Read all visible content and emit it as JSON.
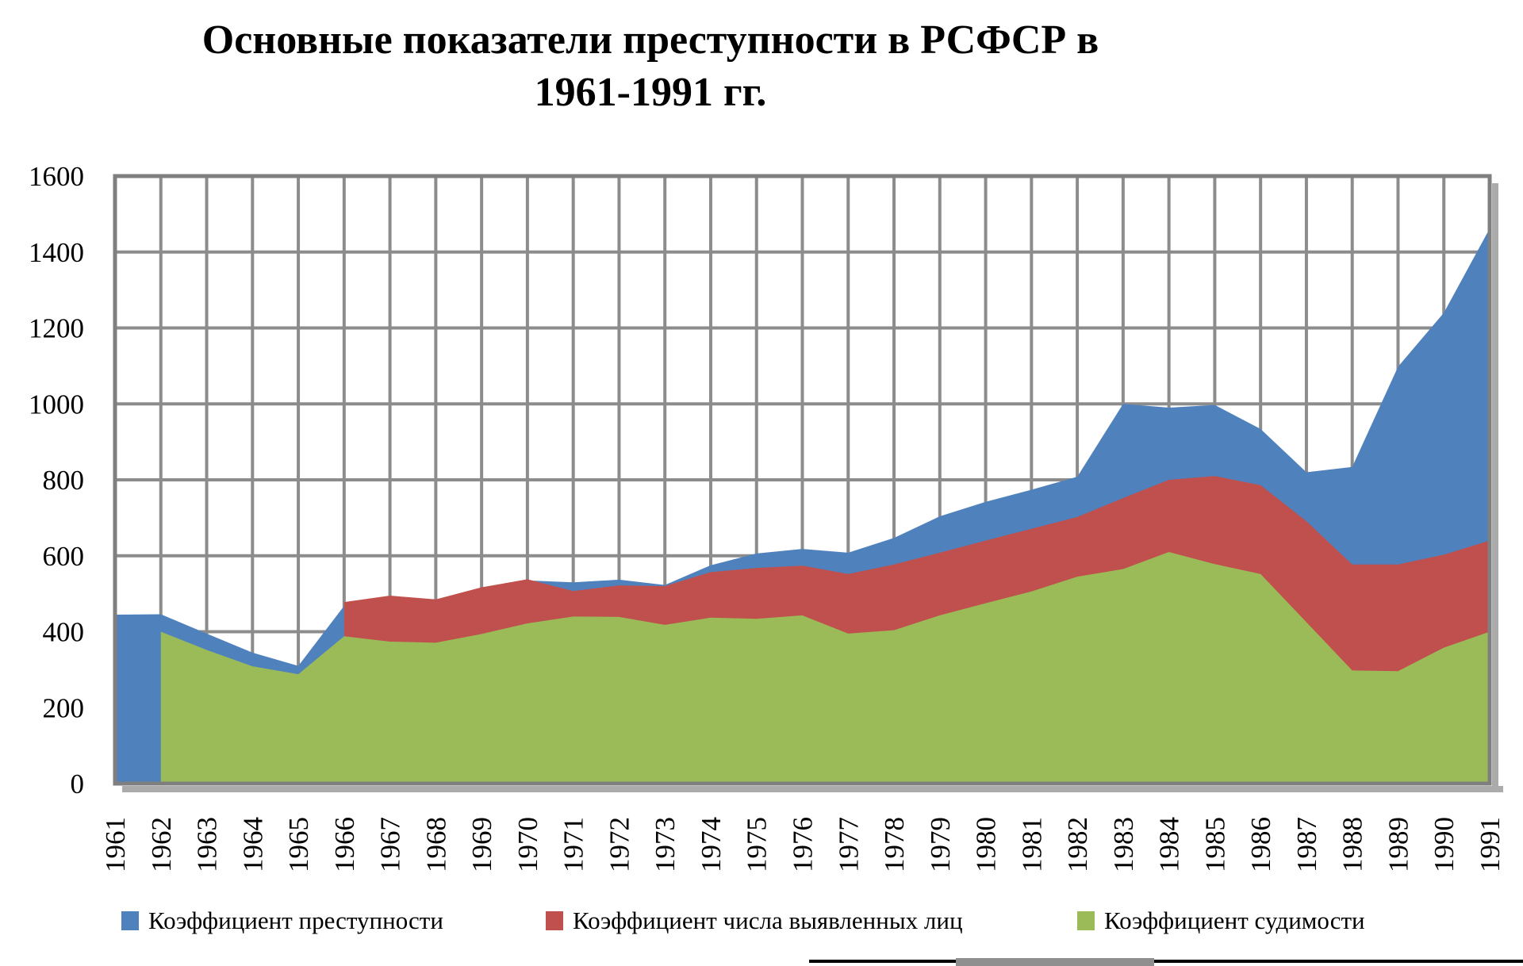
{
  "header": {
    "title_line1": "Основные показатели преступности в РСФСР в",
    "title_line2": "1961-1991 гг."
  },
  "chart_data": {
    "type": "area",
    "mode": "overlay",
    "title": "Основные показатели преступности в РСФСР в 1961-1991 гг.",
    "x": [
      1961,
      1962,
      1963,
      1964,
      1965,
      1966,
      1967,
      1968,
      1969,
      1970,
      1971,
      1972,
      1973,
      1974,
      1975,
      1976,
      1977,
      1978,
      1979,
      1980,
      1981,
      1982,
      1983,
      1984,
      1985,
      1986,
      1987,
      1988,
      1989,
      1990,
      1991
    ],
    "series": [
      {
        "name": "Коэффициент преступности",
        "color": "#4F81BD",
        "values": [
          445,
          446,
          395,
          345,
          310,
          468,
          480,
          483,
          510,
          535,
          530,
          537,
          523,
          575,
          606,
          618,
          608,
          647,
          704,
          742,
          774,
          808,
          1000,
          990,
          997,
          934,
          820,
          834,
          1098,
          1240,
          1462
        ]
      },
      {
        "name": "Коэффициент числа выявленных лиц",
        "color": "#C0504D",
        "values": [
          null,
          null,
          null,
          null,
          null,
          478,
          495,
          485,
          517,
          538,
          507,
          522,
          520,
          557,
          568,
          574,
          552,
          577,
          608,
          640,
          671,
          702,
          752,
          800,
          810,
          786,
          691,
          577,
          577,
          603,
          640
        ]
      },
      {
        "name": "Коэффициент судимости",
        "color": "#9BBB59",
        "values": [
          null,
          400,
          352,
          309,
          288,
          388,
          374,
          371,
          394,
          422,
          440,
          439,
          418,
          437,
          434,
          443,
          395,
          404,
          443,
          475,
          506,
          545,
          565,
          610,
          578,
          552,
          425,
          298,
          296,
          358,
          400
        ]
      }
    ],
    "ylim": [
      0,
      1600
    ],
    "y_ticks": [
      0,
      200,
      400,
      600,
      800,
      1000,
      1200,
      1400,
      1600
    ],
    "grid": true,
    "legend_position": "bottom",
    "gridline_color": "#8C8C8C",
    "border_color": "#7F7F7F",
    "shadow_color": "#ABABAB",
    "background": "#FFFFFF"
  }
}
